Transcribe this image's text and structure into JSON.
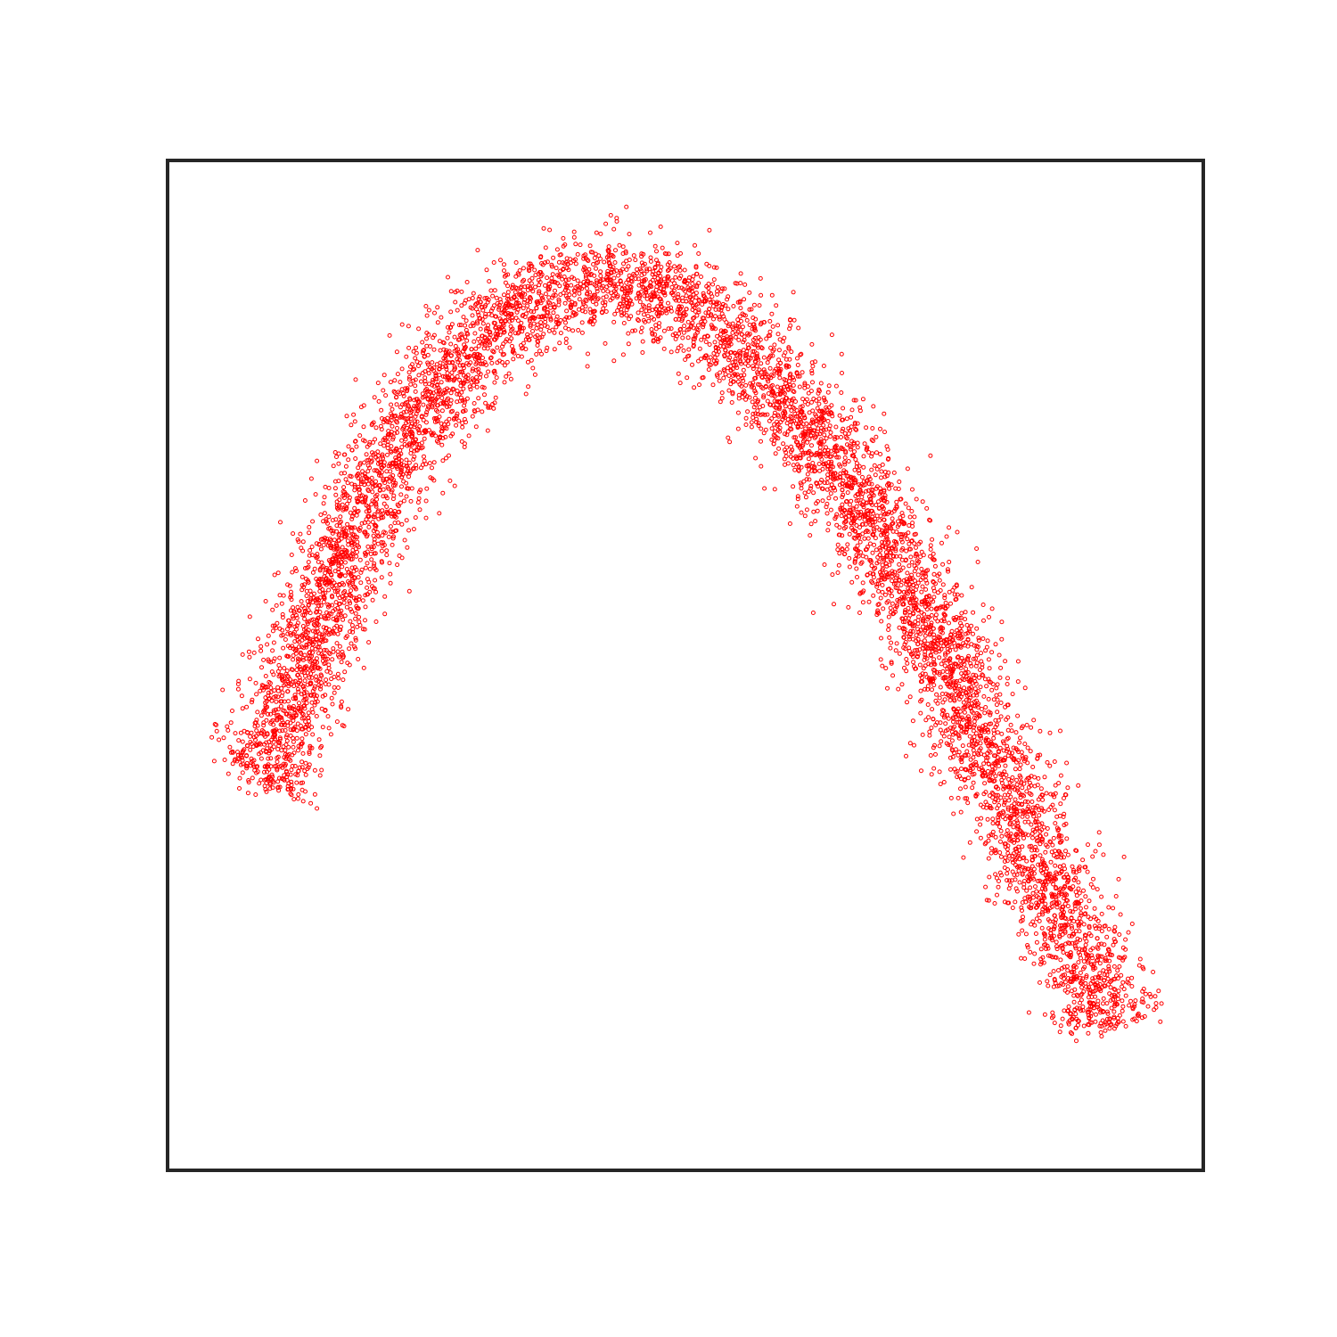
{
  "chart_data": {
    "type": "scatter",
    "title": "",
    "xlabel": "",
    "ylabel": "",
    "xticks": [],
    "yticks": [],
    "grid": false,
    "legend": null,
    "xlim": [
      0,
      1
    ],
    "ylim": [
      0,
      1
    ],
    "marker": {
      "shape": "hollow-circle",
      "color": "#ff0000"
    },
    "frame_color": "#262626",
    "series": [
      {
        "color": "#ff0000",
        "points": [
          [
            0.09,
            0.38
          ],
          [
            0.1,
            0.41
          ],
          [
            0.11,
            0.44
          ],
          [
            0.13,
            0.49
          ],
          [
            0.15,
            0.55
          ],
          [
            0.18,
            0.63
          ],
          [
            0.21,
            0.7
          ],
          [
            0.25,
            0.76
          ],
          [
            0.29,
            0.81
          ],
          [
            0.33,
            0.85
          ],
          [
            0.37,
            0.87
          ],
          [
            0.41,
            0.88
          ],
          [
            0.45,
            0.88
          ],
          [
            0.48,
            0.87
          ],
          [
            0.51,
            0.85
          ],
          [
            0.55,
            0.82
          ],
          [
            0.59,
            0.77
          ],
          [
            0.63,
            0.72
          ],
          [
            0.67,
            0.66
          ],
          [
            0.71,
            0.59
          ],
          [
            0.75,
            0.51
          ],
          [
            0.79,
            0.42
          ],
          [
            0.83,
            0.33
          ],
          [
            0.87,
            0.24
          ],
          [
            0.9,
            0.17
          ],
          [
            0.91,
            0.14
          ]
        ]
      }
    ]
  }
}
